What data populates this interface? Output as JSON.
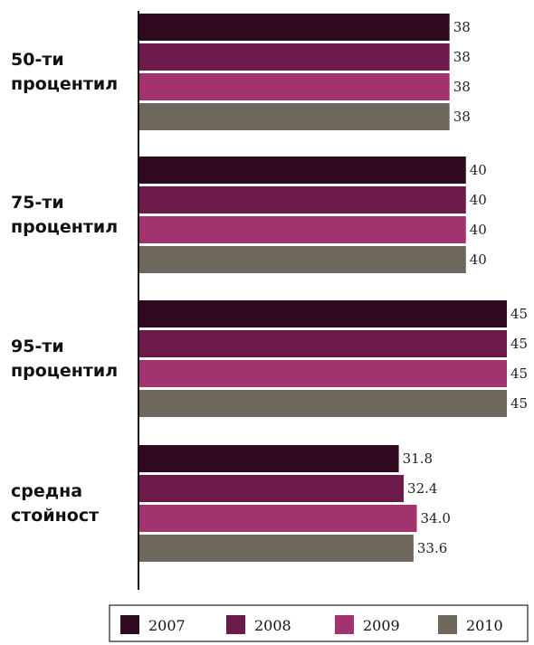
{
  "chart_data": {
    "type": "bar",
    "orientation": "horizontal",
    "categories": [
      [
        "50-ти",
        "процентил"
      ],
      [
        "75-ти",
        "процентил"
      ],
      [
        "95-ти",
        "процентил"
      ],
      [
        "средна",
        "стойност"
      ]
    ],
    "series": [
      {
        "name": "2007",
        "color": "#2f0a1f",
        "values": [
          38,
          40,
          45,
          31.8
        ],
        "labels": [
          "38",
          "40",
          "45",
          "31.8"
        ]
      },
      {
        "name": "2008",
        "color": "#6b1a4a",
        "values": [
          38,
          40,
          45,
          32.4
        ],
        "labels": [
          "38",
          "40",
          "45",
          "32.4"
        ]
      },
      {
        "name": "2009",
        "color": "#a3336f",
        "values": [
          38,
          40,
          45,
          34.0
        ],
        "labels": [
          "38",
          "40",
          "45",
          "34.0"
        ]
      },
      {
        "name": "2010",
        "color": "#6e675c",
        "values": [
          38,
          40,
          45,
          33.6
        ],
        "labels": [
          "38",
          "40",
          "45",
          "33.6"
        ]
      }
    ],
    "xlim": [
      0,
      45
    ],
    "title": "",
    "xlabel": "",
    "ylabel": "",
    "grid": false,
    "legend": "bottom"
  }
}
